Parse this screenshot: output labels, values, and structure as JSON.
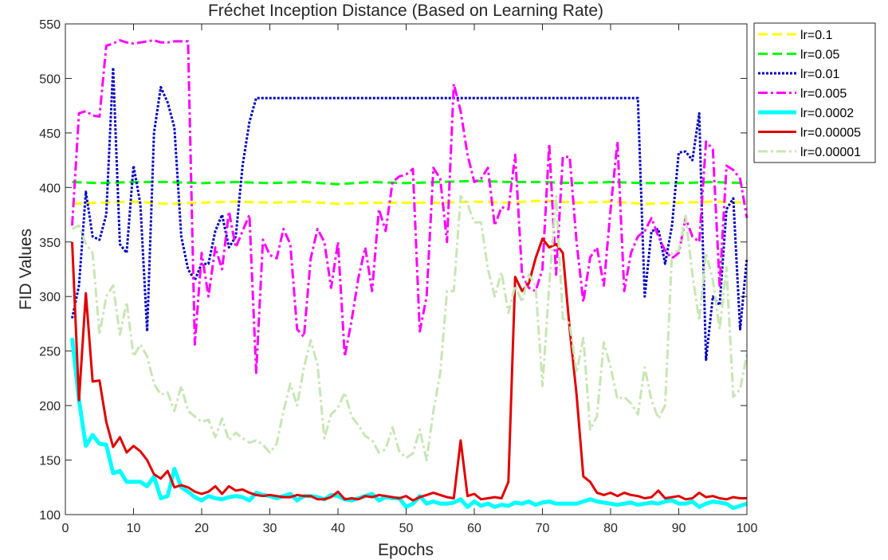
{
  "chart_data": {
    "type": "line",
    "title": "Fréchet Inception Distance (Based on Learning Rate)",
    "xlabel": "Epochs",
    "ylabel": "FID Values",
    "xlim": [
      0,
      100
    ],
    "ylim": [
      100,
      550
    ],
    "xticks": [
      0,
      10,
      20,
      30,
      40,
      50,
      60,
      70,
      80,
      90,
      100
    ],
    "yticks": [
      100,
      150,
      200,
      250,
      300,
      350,
      400,
      450,
      500,
      550
    ],
    "grid": false,
    "legend_position": "outside-top-right",
    "series": [
      {
        "name": "lr=0.1",
        "color": "#ffff00",
        "style": "dashed",
        "x": [
          1,
          5,
          10,
          15,
          20,
          25,
          30,
          35,
          40,
          45,
          50,
          55,
          60,
          65,
          70,
          75,
          80,
          85,
          90,
          95,
          100
        ],
        "values": [
          385,
          386,
          387,
          385,
          386,
          387,
          386,
          387,
          385,
          386,
          386,
          386,
          387,
          386,
          388,
          386,
          387,
          385,
          386,
          387,
          386
        ]
      },
      {
        "name": "lr=0.05",
        "color": "#00ff00",
        "style": "dashed",
        "x": [
          1,
          5,
          10,
          15,
          20,
          25,
          30,
          35,
          40,
          45,
          50,
          55,
          60,
          65,
          70,
          75,
          80,
          85,
          90,
          95,
          100
        ],
        "values": [
          405,
          404,
          405,
          405,
          404,
          405,
          404,
          405,
          403,
          405,
          404,
          405,
          406,
          405,
          405,
          404,
          405,
          404,
          404,
          405,
          404
        ]
      },
      {
        "name": "lr=0.01",
        "color": "#0000c0",
        "style": "dotted",
        "x": [
          1,
          2,
          3,
          4,
          5,
          6,
          7,
          8,
          9,
          10,
          11,
          12,
          13,
          14,
          15,
          16,
          17,
          18,
          19,
          20,
          21,
          22,
          23,
          24,
          25,
          26,
          27,
          28,
          84,
          85,
          86,
          87,
          88,
          89,
          90,
          91,
          92,
          93,
          94,
          95,
          96,
          97,
          98,
          99,
          100
        ],
        "values": [
          280,
          310,
          396,
          355,
          352,
          375,
          510,
          348,
          340,
          420,
          385,
          268,
          450,
          492,
          478,
          455,
          355,
          325,
          315,
          330,
          330,
          360,
          375,
          345,
          355,
          420,
          460,
          482,
          482,
          300,
          360,
          362,
          330,
          365,
          432,
          433,
          425,
          468,
          242,
          300,
          292,
          380,
          390,
          270,
          335
        ]
      },
      {
        "name": "lr=0.005",
        "color": "#ff00ff",
        "style": "dashdot",
        "x": [
          1,
          2,
          3,
          4,
          5,
          6,
          7,
          8,
          9,
          10,
          11,
          12,
          13,
          14,
          15,
          16,
          17,
          18,
          19,
          20,
          21,
          22,
          23,
          24,
          25,
          26,
          27,
          28,
          29,
          30,
          31,
          32,
          33,
          34,
          35,
          36,
          37,
          38,
          39,
          40,
          41,
          42,
          43,
          44,
          45,
          46,
          47,
          48,
          49,
          50,
          51,
          52,
          53,
          54,
          55,
          56,
          57,
          58,
          59,
          60,
          61,
          62,
          63,
          64,
          65,
          66,
          67,
          68,
          69,
          70,
          71,
          72,
          73,
          74,
          75,
          76,
          77,
          78,
          79,
          80,
          81,
          82,
          83,
          84,
          85,
          86,
          87,
          88,
          89,
          90,
          91,
          92,
          93,
          94,
          95,
          96,
          97,
          98,
          99,
          100
        ],
        "values": [
          365,
          468,
          470,
          466,
          465,
          530,
          532,
          535,
          533,
          532,
          533,
          534,
          535,
          533,
          533,
          534,
          534,
          534,
          256,
          340,
          300,
          345,
          325,
          378,
          345,
          360,
          375,
          230,
          352,
          338,
          335,
          362,
          348,
          270,
          263,
          335,
          362,
          350,
          308,
          350,
          245,
          278,
          317,
          345,
          305,
          380,
          360,
          405,
          410,
          412,
          417,
          268,
          300,
          418,
          408,
          350,
          495,
          470,
          430,
          405,
          408,
          418,
          365,
          382,
          380,
          430,
          320,
          308,
          305,
          325,
          440,
          320,
          428,
          428,
          350,
          295,
          336,
          345,
          310,
          380,
          442,
          305,
          340,
          355,
          360,
          372,
          355,
          342,
          335,
          340,
          372,
          355,
          350,
          442,
          435,
          310,
          420,
          416,
          408,
          372
        ]
      },
      {
        "name": "lr=0.0002",
        "color": "#00ffff",
        "style": "solid",
        "x": [
          1,
          2,
          3,
          4,
          5,
          6,
          7,
          8,
          9,
          10,
          11,
          12,
          13,
          14,
          15,
          16,
          17,
          18,
          19,
          20,
          21,
          22,
          23,
          24,
          25,
          26,
          27,
          28,
          29,
          30,
          31,
          32,
          33,
          34,
          35,
          36,
          37,
          38,
          39,
          40,
          41,
          42,
          43,
          44,
          45,
          46,
          47,
          48,
          49,
          50,
          51,
          52,
          53,
          54,
          55,
          56,
          57,
          58,
          59,
          60,
          61,
          62,
          63,
          64,
          65,
          66,
          67,
          68,
          69,
          70,
          71,
          72,
          73,
          74,
          75,
          76,
          77,
          78,
          79,
          80,
          81,
          82,
          83,
          84,
          85,
          86,
          87,
          88,
          89,
          90,
          91,
          92,
          93,
          94,
          95,
          96,
          97,
          98,
          99,
          100
        ],
        "values": [
          262,
          205,
          163,
          173,
          165,
          164,
          138,
          140,
          130,
          130,
          130,
          126,
          135,
          115,
          117,
          142,
          125,
          121,
          116,
          113,
          117,
          115,
          114,
          116,
          117,
          116,
          113,
          120,
          118,
          117,
          115,
          117,
          119,
          113,
          117,
          117,
          116,
          114,
          118,
          117,
          114,
          113,
          115,
          117,
          119,
          113,
          116,
          115,
          115,
          107,
          110,
          117,
          110,
          112,
          110,
          110,
          111,
          114,
          107,
          112,
          108,
          110,
          107,
          109,
          108,
          111,
          110,
          112,
          109,
          111,
          112,
          110,
          110,
          110,
          110,
          112,
          114,
          112,
          111,
          110,
          109,
          110,
          111,
          109,
          110,
          111,
          110,
          112,
          113,
          110,
          110,
          112,
          107,
          110,
          112,
          111,
          110,
          106,
          108,
          110
        ]
      },
      {
        "name": "lr=0.00005",
        "color": "#e00000",
        "style": "solid",
        "x": [
          1,
          2,
          3,
          4,
          5,
          6,
          7,
          8,
          9,
          10,
          11,
          12,
          13,
          14,
          15,
          16,
          17,
          18,
          19,
          20,
          21,
          22,
          23,
          24,
          25,
          26,
          27,
          28,
          29,
          30,
          31,
          32,
          33,
          34,
          35,
          36,
          37,
          38,
          39,
          40,
          41,
          42,
          43,
          44,
          45,
          46,
          47,
          48,
          49,
          50,
          51,
          52,
          53,
          54,
          55,
          56,
          57,
          58,
          59,
          60,
          61,
          62,
          63,
          64,
          65,
          66,
          67,
          68,
          69,
          70,
          71,
          72,
          73,
          74,
          75,
          76,
          77,
          78,
          79,
          80,
          81,
          82,
          83,
          84,
          85,
          86,
          87,
          88,
          89,
          90,
          91,
          92,
          93,
          94,
          95,
          96,
          97,
          98,
          99,
          100
        ],
        "values": [
          350,
          205,
          303,
          222,
          223,
          185,
          162,
          171,
          157,
          163,
          158,
          150,
          137,
          133,
          140,
          125,
          127,
          125,
          121,
          119,
          121,
          126,
          119,
          126,
          122,
          123,
          120,
          118,
          117,
          118,
          117,
          116,
          116,
          118,
          117,
          117,
          114,
          114,
          116,
          121,
          114,
          115,
          114,
          117,
          116,
          118,
          117,
          116,
          115,
          117,
          113,
          116,
          118,
          120,
          118,
          116,
          115,
          168,
          117,
          119,
          114,
          115,
          116,
          115,
          130,
          318,
          305,
          312,
          335,
          353,
          345,
          348,
          340,
          270,
          210,
          135,
          130,
          120,
          118,
          120,
          117,
          120,
          118,
          117,
          115,
          116,
          122,
          115,
          116,
          117,
          114,
          115,
          120,
          116,
          117,
          115,
          114,
          116,
          115,
          115
        ]
      },
      {
        "name": "lr=0.00001",
        "color": "#c8e6b4",
        "style": "dashdot",
        "x": [
          1,
          2,
          3,
          4,
          5,
          6,
          7,
          8,
          9,
          10,
          11,
          12,
          13,
          14,
          15,
          16,
          17,
          18,
          19,
          20,
          21,
          22,
          23,
          24,
          25,
          26,
          27,
          28,
          29,
          30,
          31,
          32,
          33,
          34,
          35,
          36,
          37,
          38,
          39,
          40,
          41,
          42,
          43,
          44,
          45,
          46,
          47,
          48,
          49,
          50,
          51,
          52,
          53,
          54,
          55,
          56,
          57,
          58,
          59,
          60,
          61,
          62,
          63,
          64,
          65,
          66,
          67,
          68,
          69,
          70,
          71,
          72,
          73,
          74,
          75,
          76,
          77,
          78,
          79,
          80,
          81,
          82,
          83,
          84,
          85,
          86,
          87,
          88,
          89,
          90,
          91,
          92,
          93,
          94,
          95,
          96,
          97,
          98,
          99,
          100
        ],
        "values": [
          362,
          365,
          348,
          340,
          265,
          300,
          310,
          265,
          295,
          245,
          256,
          245,
          220,
          210,
          212,
          195,
          218,
          195,
          190,
          185,
          187,
          171,
          188,
          168,
          175,
          170,
          166,
          168,
          164,
          157,
          165,
          195,
          220,
          200,
          235,
          260,
          237,
          170,
          192,
          198,
          212,
          190,
          182,
          172,
          168,
          157,
          160,
          180,
          158,
          152,
          156,
          178,
          150,
          195,
          230,
          305,
          305,
          392,
          385,
          368,
          368,
          325,
          300,
          322,
          285,
          310,
          295,
          320,
          310,
          218,
          310,
          392,
          280,
          275,
          230,
          262,
          178,
          190,
          258,
          235,
          206,
          208,
          202,
          192,
          235,
          205,
          188,
          200,
          340,
          342,
          374,
          320,
          278,
          340,
          315,
          270,
          327,
          208,
          215,
          247
        ]
      }
    ]
  }
}
